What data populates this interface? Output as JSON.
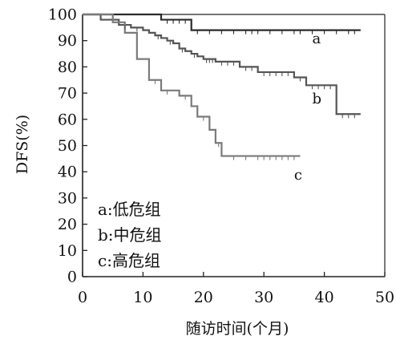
{
  "chart_data": {
    "type": "line",
    "step": true,
    "xlabel": "随访时间(个月)",
    "ylabel": "DFS(%)",
    "xlim": [
      0,
      50
    ],
    "ylim": [
      0,
      100
    ],
    "xticks": [
      0,
      10,
      20,
      30,
      40,
      50
    ],
    "yticks": [
      0,
      10,
      20,
      30,
      40,
      50,
      60,
      70,
      80,
      90,
      100
    ],
    "grid": false,
    "legend_position": "bottom-left",
    "legend": [
      {
        "key": "a",
        "text": "a:低危组"
      },
      {
        "key": "b",
        "text": "b:中危组"
      },
      {
        "key": "c",
        "text": "c:高危组"
      }
    ],
    "series": [
      {
        "name": "a",
        "color": "#2a2a2a",
        "points": [
          [
            0,
            100
          ],
          [
            13,
            100
          ],
          [
            13,
            98
          ],
          [
            18,
            98
          ],
          [
            18,
            94
          ],
          [
            46,
            94
          ]
        ],
        "censors": [
          14,
          15,
          16,
          17,
          19,
          21,
          23,
          25,
          27,
          28,
          29,
          31,
          33,
          35,
          36,
          38,
          40,
          42,
          44,
          45
        ]
      },
      {
        "name": "b",
        "color": "#555555",
        "points": [
          [
            0,
            100
          ],
          [
            3,
            100
          ],
          [
            3,
            98
          ],
          [
            6,
            98
          ],
          [
            6,
            96
          ],
          [
            8,
            96
          ],
          [
            8,
            95
          ],
          [
            10,
            95
          ],
          [
            10,
            94
          ],
          [
            11,
            94
          ],
          [
            11,
            93
          ],
          [
            12,
            93
          ],
          [
            12,
            92
          ],
          [
            13,
            92
          ],
          [
            13,
            91
          ],
          [
            14,
            91
          ],
          [
            14,
            90
          ],
          [
            15,
            90
          ],
          [
            15,
            89
          ],
          [
            16,
            89
          ],
          [
            16,
            87
          ],
          [
            17,
            87
          ],
          [
            17,
            86
          ],
          [
            18,
            86
          ],
          [
            18,
            85
          ],
          [
            19,
            85
          ],
          [
            19,
            84
          ],
          [
            20,
            84
          ],
          [
            20,
            83
          ],
          [
            22,
            83
          ],
          [
            22,
            82
          ],
          [
            26,
            82
          ],
          [
            26,
            80
          ],
          [
            29,
            80
          ],
          [
            29,
            78
          ],
          [
            35,
            78
          ],
          [
            35,
            76
          ],
          [
            37,
            76
          ],
          [
            37,
            73
          ],
          [
            42,
            73
          ],
          [
            42,
            62
          ],
          [
            46,
            62
          ]
        ],
        "censors": [
          7,
          9,
          12.5,
          14.5,
          16.5,
          18.5,
          20.5,
          21,
          21.5,
          23,
          24,
          25,
          27,
          28,
          30,
          31,
          32,
          33,
          34,
          36,
          38,
          39,
          40,
          41,
          43,
          44,
          45
        ]
      },
      {
        "name": "c",
        "color": "#7a7a7a",
        "points": [
          [
            0,
            100
          ],
          [
            5,
            100
          ],
          [
            5,
            97
          ],
          [
            7,
            97
          ],
          [
            7,
            93
          ],
          [
            9,
            93
          ],
          [
            9,
            83
          ],
          [
            11,
            83
          ],
          [
            11,
            75
          ],
          [
            13,
            75
          ],
          [
            13,
            71
          ],
          [
            16,
            71
          ],
          [
            16,
            69
          ],
          [
            18,
            69
          ],
          [
            18,
            65
          ],
          [
            19,
            65
          ],
          [
            19,
            61
          ],
          [
            21,
            61
          ],
          [
            21,
            56
          ],
          [
            22,
            56
          ],
          [
            22,
            51
          ],
          [
            23,
            51
          ],
          [
            23,
            46
          ],
          [
            36,
            46
          ]
        ],
        "censors": [
          12,
          14,
          17,
          20,
          22.5,
          25,
          27,
          29,
          30,
          31,
          32,
          33,
          34,
          35
        ]
      }
    ],
    "curve_labels": [
      {
        "text": "a",
        "x": 38,
        "y": 89
      },
      {
        "text": "b",
        "x": 38,
        "y": 66
      },
      {
        "text": "c",
        "x": 35,
        "y": 37
      }
    ]
  }
}
